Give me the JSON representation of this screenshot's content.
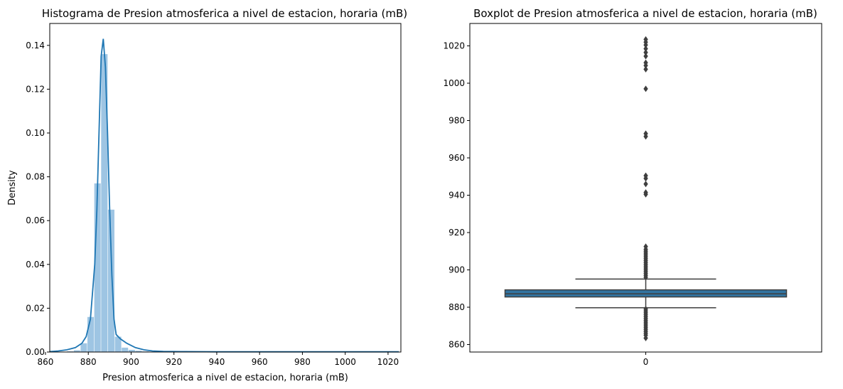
{
  "chart_data": [
    {
      "type": "histogram",
      "title": "Histograma de Presion atmosferica a nivel de estacion, horaria (mB)",
      "xlabel": "Presion atmosferica a nivel de estacion, horaria (mB)",
      "ylabel": "Density",
      "xlim": [
        862,
        1026
      ],
      "ylim": [
        0,
        0.15
      ],
      "xticks": [
        "860",
        "880",
        "900",
        "920",
        "940",
        "960",
        "980",
        "1000",
        "1020"
      ],
      "yticks": [
        "0.00",
        "0.02",
        "0.04",
        "0.06",
        "0.08",
        "0.10",
        "0.12",
        "0.14"
      ],
      "bar_color": "#9ec5e3",
      "kde_color": "#1f77b4",
      "bins": [
        {
          "x0": 870.0,
          "x1": 873.2,
          "value": 0.0003
        },
        {
          "x0": 873.2,
          "x1": 876.4,
          "value": 0.0008
        },
        {
          "x0": 876.4,
          "x1": 879.6,
          "value": 0.004
        },
        {
          "x0": 879.6,
          "x1": 882.8,
          "value": 0.016
        },
        {
          "x0": 882.8,
          "x1": 886.0,
          "value": 0.077
        },
        {
          "x0": 886.0,
          "x1": 889.2,
          "value": 0.136
        },
        {
          "x0": 889.2,
          "x1": 892.4,
          "value": 0.065
        },
        {
          "x0": 892.4,
          "x1": 895.6,
          "value": 0.007
        },
        {
          "x0": 895.6,
          "x1": 898.8,
          "value": 0.002
        },
        {
          "x0": 898.8,
          "x1": 902.0,
          "value": 0.001
        },
        {
          "x0": 902.0,
          "x1": 905.2,
          "value": 0.0006
        },
        {
          "x0": 905.2,
          "x1": 908.4,
          "value": 0.0003
        }
      ],
      "kde": {
        "x": [
          862,
          866,
          870,
          874,
          877,
          879,
          881,
          883,
          884,
          885,
          886,
          887,
          888,
          889,
          890,
          891,
          892,
          893,
          895,
          898,
          902,
          906,
          910,
          915,
          925,
          940,
          970,
          1000,
          1025
        ],
        "y": [
          0.0002,
          0.0005,
          0.001,
          0.002,
          0.004,
          0.007,
          0.015,
          0.04,
          0.065,
          0.1,
          0.135,
          0.143,
          0.13,
          0.1,
          0.065,
          0.035,
          0.015,
          0.008,
          0.006,
          0.004,
          0.002,
          0.001,
          0.0005,
          0.0003,
          0.0002,
          0.0001,
          0.0001,
          0.0001,
          0.0001
        ]
      }
    },
    {
      "type": "box",
      "title": "Boxplot de Presion atmosferica a nivel de estacion, horaria (mB)",
      "xlabel": "",
      "ylabel": "",
      "categories": [
        "0"
      ],
      "ylim": [
        856,
        1032
      ],
      "yticks": [
        "860",
        "880",
        "900",
        "920",
        "940",
        "960",
        "980",
        "1000",
        "1020"
      ],
      "box_color": "#3274a1",
      "line_color": "#3f3f3f",
      "box": {
        "q1": 885.5,
        "median": 887.2,
        "q3": 889.3,
        "whisker_low": 879.7,
        "whisker_high": 895.1
      },
      "outliers": [
        863.5,
        865,
        866,
        867,
        868,
        869,
        870,
        871,
        872,
        873,
        874,
        875,
        876,
        877,
        878,
        879,
        896,
        897,
        898,
        899,
        900,
        901,
        902,
        903,
        904,
        905,
        906,
        907,
        908,
        909,
        910,
        911,
        912.5,
        940.5,
        941.5,
        946,
        949,
        950.5,
        971.5,
        973,
        997,
        1007.5,
        1009.5,
        1011,
        1014.5,
        1016.5,
        1018.5,
        1020.5,
        1022,
        1023.5
      ]
    }
  ]
}
